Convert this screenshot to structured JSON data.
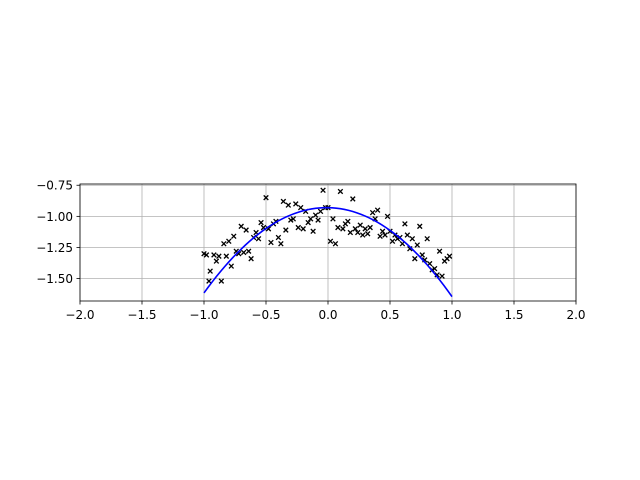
{
  "chart_data": {
    "type": "scatter",
    "title": "",
    "xlabel": "",
    "ylabel": "",
    "xlim": [
      -2.0,
      2.0
    ],
    "ylim": [
      -1.68,
      -0.74
    ],
    "x_ticks": [
      -2.0,
      -1.5,
      -1.0,
      -0.5,
      0.0,
      0.5,
      1.0,
      1.5,
      2.0
    ],
    "x_tick_labels": [
      "−2.0",
      "−1.5",
      "−1.0",
      "−0.5",
      "0.0",
      "0.5",
      "1.0",
      "1.5",
      "2.0"
    ],
    "y_ticks": [
      -0.75,
      -1.0,
      -1.25,
      -1.5
    ],
    "y_tick_labels": [
      "−0.75",
      "−1.00",
      "−1.25",
      "−1.50"
    ],
    "grid": true,
    "series": [
      {
        "kind": "scatter",
        "marker": "x",
        "color": "#000000",
        "points": [
          [
            -1.0,
            -1.3
          ],
          [
            -0.98,
            -1.31
          ],
          [
            -0.96,
            -1.52
          ],
          [
            -0.95,
            -1.44
          ],
          [
            -0.92,
            -1.31
          ],
          [
            -0.9,
            -1.36
          ],
          [
            -0.88,
            -1.32
          ],
          [
            -0.86,
            -1.52
          ],
          [
            -0.84,
            -1.22
          ],
          [
            -0.82,
            -1.32
          ],
          [
            -0.8,
            -1.2
          ],
          [
            -0.78,
            -1.4
          ],
          [
            -0.76,
            -1.16
          ],
          [
            -0.74,
            -1.28
          ],
          [
            -0.72,
            -1.3
          ],
          [
            -0.7,
            -1.08
          ],
          [
            -0.68,
            -1.29
          ],
          [
            -0.66,
            -1.11
          ],
          [
            -0.64,
            -1.28
          ],
          [
            -0.62,
            -1.34
          ],
          [
            -0.6,
            -1.17
          ],
          [
            -0.58,
            -1.13
          ],
          [
            -0.56,
            -1.18
          ],
          [
            -0.54,
            -1.05
          ],
          [
            -0.52,
            -1.09
          ],
          [
            -0.5,
            -0.85
          ],
          [
            -0.48,
            -1.1
          ],
          [
            -0.46,
            -1.21
          ],
          [
            -0.44,
            -1.06
          ],
          [
            -0.42,
            -1.04
          ],
          [
            -0.4,
            -1.17
          ],
          [
            -0.38,
            -1.22
          ],
          [
            -0.36,
            -0.88
          ],
          [
            -0.34,
            -1.11
          ],
          [
            -0.32,
            -0.91
          ],
          [
            -0.3,
            -1.03
          ],
          [
            -0.28,
            -1.02
          ],
          [
            -0.26,
            -0.9
          ],
          [
            -0.24,
            -1.09
          ],
          [
            -0.22,
            -0.93
          ],
          [
            -0.2,
            -1.1
          ],
          [
            -0.18,
            -0.96
          ],
          [
            -0.16,
            -1.05
          ],
          [
            -0.14,
            -1.02
          ],
          [
            -0.12,
            -1.12
          ],
          [
            -0.1,
            -0.99
          ],
          [
            -0.08,
            -1.03
          ],
          [
            -0.06,
            -0.96
          ],
          [
            -0.04,
            -0.79
          ],
          [
            -0.02,
            -0.93
          ],
          [
            0.0,
            -0.93
          ],
          [
            0.02,
            -1.2
          ],
          [
            0.04,
            -1.02
          ],
          [
            0.06,
            -1.22
          ],
          [
            0.08,
            -1.09
          ],
          [
            0.1,
            -0.8
          ],
          [
            0.12,
            -1.1
          ],
          [
            0.14,
            -1.06
          ],
          [
            0.16,
            -1.04
          ],
          [
            0.18,
            -1.13
          ],
          [
            0.2,
            -0.86
          ],
          [
            0.22,
            -1.1
          ],
          [
            0.24,
            -1.13
          ],
          [
            0.26,
            -1.07
          ],
          [
            0.28,
            -1.15
          ],
          [
            0.3,
            -1.1
          ],
          [
            0.32,
            -1.14
          ],
          [
            0.34,
            -1.09
          ],
          [
            0.36,
            -0.97
          ],
          [
            0.38,
            -1.02
          ],
          [
            0.4,
            -0.95
          ],
          [
            0.42,
            -1.16
          ],
          [
            0.44,
            -1.12
          ],
          [
            0.46,
            -1.15
          ],
          [
            0.48,
            -1.0
          ],
          [
            0.5,
            -1.12
          ],
          [
            0.52,
            -1.2
          ],
          [
            0.54,
            -1.15
          ],
          [
            0.56,
            -1.18
          ],
          [
            0.58,
            -1.17
          ],
          [
            0.6,
            -1.22
          ],
          [
            0.62,
            -1.06
          ],
          [
            0.64,
            -1.15
          ],
          [
            0.66,
            -1.26
          ],
          [
            0.68,
            -1.18
          ],
          [
            0.7,
            -1.34
          ],
          [
            0.72,
            -1.23
          ],
          [
            0.74,
            -1.08
          ],
          [
            0.76,
            -1.31
          ],
          [
            0.78,
            -1.35
          ],
          [
            0.8,
            -1.18
          ],
          [
            0.82,
            -1.38
          ],
          [
            0.84,
            -1.43
          ],
          [
            0.86,
            -1.42
          ],
          [
            0.88,
            -1.47
          ],
          [
            0.9,
            -1.28
          ],
          [
            0.92,
            -1.48
          ],
          [
            0.94,
            -1.36
          ],
          [
            0.96,
            -1.34
          ],
          [
            0.98,
            -1.32
          ]
        ]
      },
      {
        "kind": "line",
        "color": "#0000ff",
        "function": {
          "form": "quadratic",
          "a": -0.7,
          "b": -0.015,
          "c": -0.93
        },
        "x_range": [
          -1.0,
          1.0
        ],
        "samples": 60
      }
    ]
  }
}
